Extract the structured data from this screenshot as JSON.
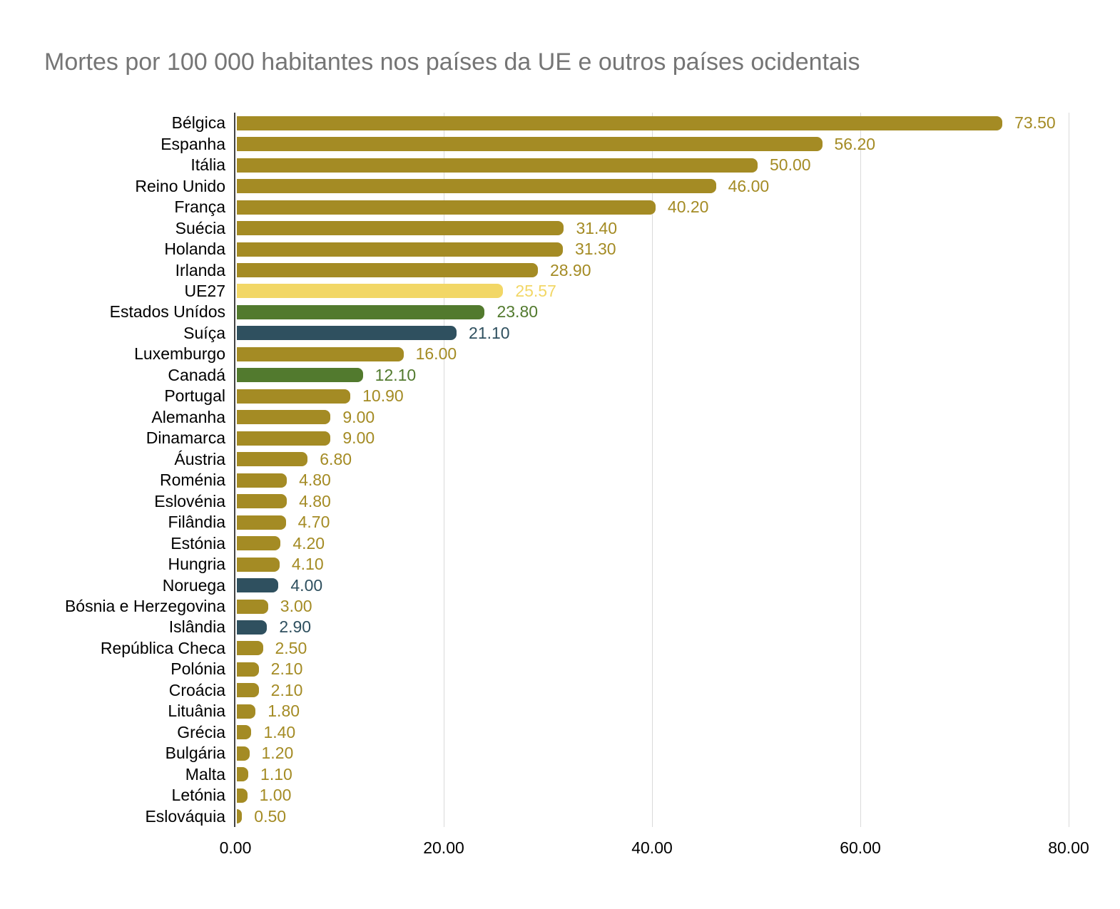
{
  "title": "Mortes por 100 000 habitantes nos países da UE e outros países ocidentais",
  "colors": {
    "gold": "#A48B24",
    "light_yellow": "#F2D766",
    "green": "#527A2E",
    "blue": "#2F505F",
    "title_text": "#757575",
    "axis_line": "#424242",
    "gridline": "#DADADA",
    "category_text": "#000000",
    "tick_text": "#000000"
  },
  "chart_data": {
    "type": "bar",
    "orientation": "horizontal",
    "title": "Mortes por 100 000 habitantes nos países da UE e outros países ocidentais",
    "xlabel": "",
    "ylabel": "",
    "xlim": [
      0,
      80
    ],
    "grid": true,
    "legend": false,
    "x_ticks": [
      {
        "label": "0.00",
        "value": 0
      },
      {
        "label": "20.00",
        "value": 20
      },
      {
        "label": "40.00",
        "value": 40
      },
      {
        "label": "60.00",
        "value": 60
      },
      {
        "label": "80.00",
        "value": 80
      }
    ],
    "bars": [
      {
        "label": "Bélgica",
        "value": 73.5,
        "display": "73.50",
        "color": "gold"
      },
      {
        "label": "Espanha",
        "value": 56.2,
        "display": "56.20",
        "color": "gold"
      },
      {
        "label": "Itália",
        "value": 50.0,
        "display": "50.00",
        "color": "gold"
      },
      {
        "label": "Reino Unido",
        "value": 46.0,
        "display": "46.00",
        "color": "gold"
      },
      {
        "label": "França",
        "value": 40.2,
        "display": "40.20",
        "color": "gold"
      },
      {
        "label": "Suécia",
        "value": 31.4,
        "display": "31.40",
        "color": "gold"
      },
      {
        "label": "Holanda",
        "value": 31.3,
        "display": "31.30",
        "color": "gold"
      },
      {
        "label": "Irlanda",
        "value": 28.9,
        "display": "28.90",
        "color": "gold"
      },
      {
        "label": "UE27",
        "value": 25.57,
        "display": "25.57",
        "color": "light_yellow"
      },
      {
        "label": "Estados Unídos",
        "value": 23.8,
        "display": "23.80",
        "color": "green"
      },
      {
        "label": "Suíça",
        "value": 21.1,
        "display": "21.10",
        "color": "blue"
      },
      {
        "label": "Luxemburgo",
        "value": 16.0,
        "display": "16.00",
        "color": "gold"
      },
      {
        "label": "Canadá",
        "value": 12.1,
        "display": "12.10",
        "color": "green"
      },
      {
        "label": "Portugal",
        "value": 10.9,
        "display": "10.90",
        "color": "gold"
      },
      {
        "label": "Alemanha",
        "value": 9.0,
        "display": "9.00",
        "color": "gold"
      },
      {
        "label": "Dinamarca",
        "value": 9.0,
        "display": "9.00",
        "color": "gold"
      },
      {
        "label": "Áustria",
        "value": 6.8,
        "display": "6.80",
        "color": "gold"
      },
      {
        "label": "Roménia",
        "value": 4.8,
        "display": "4.80",
        "color": "gold"
      },
      {
        "label": "Eslovénia",
        "value": 4.8,
        "display": "4.80",
        "color": "gold"
      },
      {
        "label": "Filândia",
        "value": 4.7,
        "display": "4.70",
        "color": "gold"
      },
      {
        "label": "Estónia",
        "value": 4.2,
        "display": "4.20",
        "color": "gold"
      },
      {
        "label": "Hungria",
        "value": 4.1,
        "display": "4.10",
        "color": "gold"
      },
      {
        "label": "Noruega",
        "value": 4.0,
        "display": "4.00",
        "color": "blue"
      },
      {
        "label": "Bósnia e Herzegovina",
        "value": 3.0,
        "display": "3.00",
        "color": "gold"
      },
      {
        "label": "Islândia",
        "value": 2.9,
        "display": "2.90",
        "color": "blue"
      },
      {
        "label": "República Checa",
        "value": 2.5,
        "display": "2.50",
        "color": "gold"
      },
      {
        "label": "Polónia",
        "value": 2.1,
        "display": "2.10",
        "color": "gold"
      },
      {
        "label": "Croácia",
        "value": 2.1,
        "display": "2.10",
        "color": "gold"
      },
      {
        "label": "Lituânia",
        "value": 1.8,
        "display": "1.80",
        "color": "gold"
      },
      {
        "label": "Grécia",
        "value": 1.4,
        "display": "1.40",
        "color": "gold"
      },
      {
        "label": "Bulgária",
        "value": 1.2,
        "display": "1.20",
        "color": "gold"
      },
      {
        "label": "Malta",
        "value": 1.1,
        "display": "1.10",
        "color": "gold"
      },
      {
        "label": "Letónia",
        "value": 1.0,
        "display": "1.00",
        "color": "gold"
      },
      {
        "label": "Eslováquia",
        "value": 0.5,
        "display": "0.50",
        "color": "gold"
      }
    ]
  }
}
